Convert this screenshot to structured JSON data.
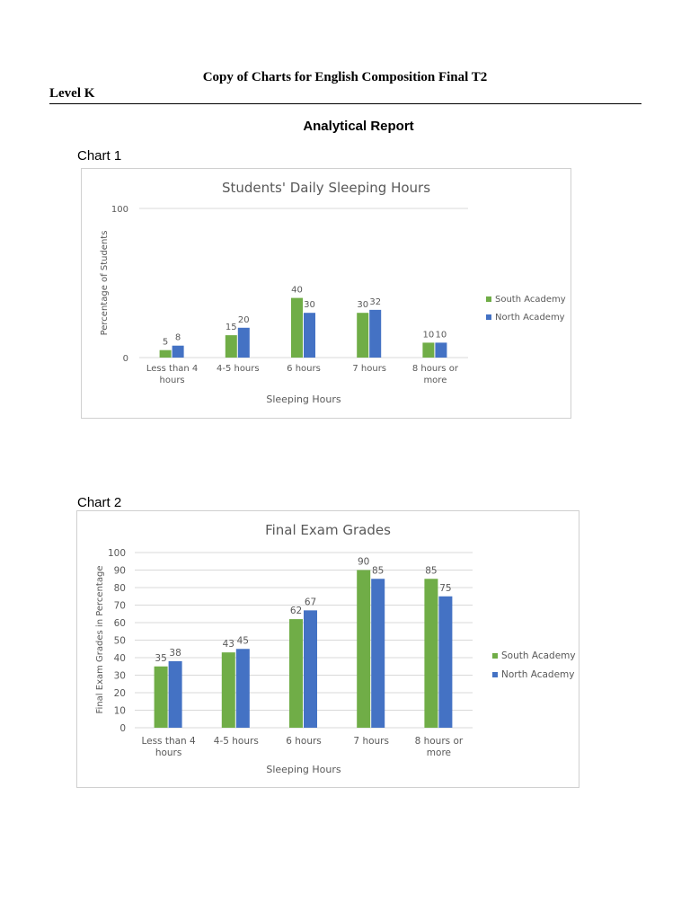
{
  "document": {
    "title": "Copy of Charts for English Composition Final T2",
    "level": "Level K",
    "report_heading": "Analytical Report",
    "chart_labels": [
      "Chart 1",
      "Chart 2"
    ]
  },
  "colors": {
    "south": "#70ad47",
    "north": "#4472c4",
    "gridline": "#d9d9d9",
    "axis_text": "#595959"
  },
  "chart_data": [
    {
      "type": "bar",
      "title": "Students' Daily Sleeping Hours",
      "xlabel": "Sleeping Hours",
      "ylabel": "Percentage of Students",
      "categories": [
        [
          "Less than 4",
          "hours"
        ],
        [
          "4-5 hours"
        ],
        [
          "6 hours"
        ],
        [
          "7 hours"
        ],
        [
          "8 hours or",
          "more"
        ]
      ],
      "series": [
        {
          "name": "South Academy",
          "values": [
            5,
            15,
            40,
            30,
            10
          ]
        },
        {
          "name": "North Academy",
          "values": [
            8,
            20,
            30,
            32,
            10
          ]
        }
      ],
      "ylim": [
        0,
        100
      ],
      "yticks": [
        0,
        100
      ],
      "grid": true,
      "data_labels": true,
      "legend": "right"
    },
    {
      "type": "bar",
      "title": "Final Exam Grades",
      "xlabel": "Sleeping Hours",
      "ylabel": "Final Exam Grades in Percentage",
      "categories": [
        [
          "Less than 4",
          "hours"
        ],
        [
          "4-5 hours"
        ],
        [
          "6 hours"
        ],
        [
          "7 hours"
        ],
        [
          "8 hours or",
          "more"
        ]
      ],
      "series": [
        {
          "name": "South Academy",
          "values": [
            35,
            43,
            62,
            90,
            85
          ]
        },
        {
          "name": "North Academy",
          "values": [
            38,
            45,
            67,
            85,
            75
          ]
        }
      ],
      "ylim": [
        0,
        100
      ],
      "yticks": [
        0,
        10,
        20,
        30,
        40,
        50,
        60,
        70,
        80,
        90,
        100
      ],
      "grid": true,
      "data_labels": true,
      "legend": "right"
    }
  ]
}
